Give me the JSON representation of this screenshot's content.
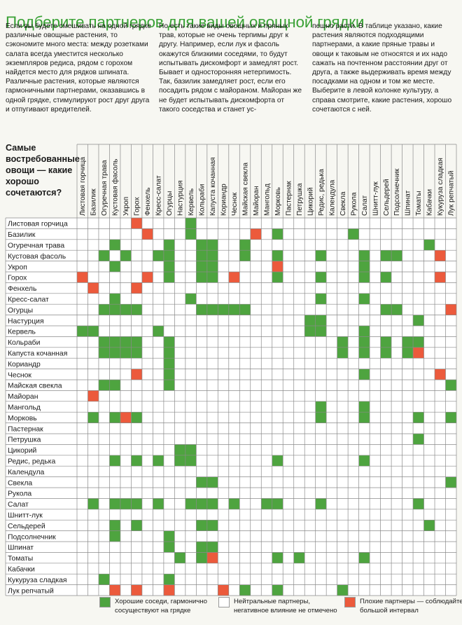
{
  "title": "Подберите партнеров для вашей овощной грядки",
  "intro": {
    "col1": "Если вы будете смешивать на одной грядке различные овощные растения, то сэкономите много места: между розетками салата всегда уместится несколько экземпляров редиса, рядом с горохом найдется место для рядков шпината. Различные растения, которые являются гармоничными партнерами, оказавшись в одной грядке, стимулируют рост друг друга и отпугивают вредителей.",
    "col2": "Но есть такие виды овощных и пряных трав, которые не очень терпимы друг к другу. Например, если лук и фасоль окажутся близкими соседями, то будут испытывать дискомфорт и замедлят рост. Бывает и односторонняя нетерпимость. Так, базилик замедляет рост, если его посадить рядом с майораном. Майоран же не будет испытывать дискомфорта от такого соседства и станет ус-",
    "col3": "пешно расти. В таблице указано, какие растения являются подходящими партнерами, а какие пряные травы и овощи к таковым не относятся и их надо сажать на почтенном расстоянии друг от друга, а также выдерживать время между посадками на одном и том же месте. Выберите в левой колонке культуру, а справа смотрите, какие растения, хорошо сочетаются с ней."
  },
  "table_heading": "Самые востребованные овощи — какие хорошо сочетаются?",
  "crops": [
    "Листовая горчица",
    "Базилик",
    "Огуречная трава",
    "Кустовая фасоль",
    "Укроп",
    "Горох",
    "Фенхель",
    "Кресс-салат",
    "Огурцы",
    "Настурция",
    "Кервель",
    "Кольраби",
    "Капуста кочанная",
    "Кориандр",
    "Чеснок",
    "Майская свекла",
    "Майоран",
    "Мангольд",
    "Морковь",
    "Пастернак",
    "Петрушка",
    "Цикорий",
    "Редис, редька",
    "Календула",
    "Свекла",
    "Рукола",
    "Салат",
    "Шнитт-лук",
    "Сельдерей",
    "Подсолнечник",
    "Шпинат",
    "Томаты",
    "Кабачки",
    "Кукуруза сладкая",
    "Лук репчатый"
  ],
  "colors": {
    "good": "#4ea43f",
    "bad": "#ec5a3c",
    "neutral": "#ffffff",
    "grid_line": "#8a8a8a",
    "title": "#3aa136"
  },
  "legend": [
    {
      "color": "#4ea43f",
      "label": "Хорошие соседи, гармонично сосуществуют на грядке"
    },
    {
      "color": "#ffffff",
      "label": "Нейтральные партнеры, негативное влияние не отмечено"
    },
    {
      "color": "#ec5a3c",
      "label": "Плохие партнеры — соблюдайте большой интервал"
    }
  ],
  "matrix": [
    "-NNNNBNNNNGNNNNNNNNNNNNNNNNNNNNNNNN",
    "N-NNNNBNNNGNNNNNBNGNNNNNNGNNNNNNNNN",
    "NN-GNNNNGNNGGNNGNNNNNNNNNNNNNNNNGNN",
    "NNG-GNNGGNNGGNNGNNGNNNGNNNGNGGNNNBN",
    "NNNG-NNNGNNGGNNNNNBNNNNNNNGNNNNNNNN",
    "BNNNN-BNGNNGGNBNNNGNNNGNNNGNGNNNNBN",
    "NBNNNB-NNNNNNNNNNNNNNNNNNNNNNNNNNNN",
    "NNNGNNN-NNGNNNNNNNNNNNGNNNGNNNNNNNN",
    "NNGGGGNN-NNGGGGGNNNNNNNNNNNNGGNNNNB",
    "NNNNNNNNN-NNNNNNNNNNNGGNNNNNNNNGNNN",
    "GGNNNNNGNN-NNNNNNNNNNGGNNNGNNNNNNNN",
    "NNGGGGNNGNN-NNNNNNNNNNNNGNGNGNGGNNN",
    "NNGGGGNNGNNN-NNNNNNNNNNNGNGNGNGBNNN",
    "NNNNNNNNGNNNN-NNNNNNNNNNNNNNNNNNNNN",
    "NNNNNBNNGNNNNN-NNNNNNNNNNNGNNNNNNBN",
    "NNGGNNNNGNNNNNN-NNNNNNNNNNNNNNNNNNG",
    "NBNNNNNNNNNNNNNN-NNNNNNNNNNNNNNNNNN",
    "NNNNNNNNNNNNNNNNN-NNNNGNNNGNNNNNNNN",
    "NGNGBGNNNNNNNNNNNN-NNNGNNNGNNNNGNNG",
    "NNNNNNNNNNNNNNNNNNN-NNNNNNNNNNNNNNN",
    "NNNNNNNNNNNNNNNNNNNN-NNNNNNNNNNGNNN",
    "NNNNNNNNNGGNNNNNNNNNN-NNNNNNNNNNNNN",
    "NNNGNGNGNGGNNNNNNNGNNN-NNNGNNNNNNNN",
    "NNNNNNNNNNNNNNNNNNNNNNN-NNNNNNNNNNN",
    "NNNNNNNNNNNGGNNNNNNNNNNN-NNNNNNNNNG",
    "NNNNNNNNNNNNNNNNNNNNNNNNN-NNNNNNNNN",
    "NGNGGGNGNNGGGNGNNGGNNNGNNN-NNNNGNNN",
    "NNNNNNNNNNNNNNNNNNNNNNNNNN-NNNNNNNNN",
    "NNNGNGNNNNNGGNNNNNNNNNNNNNN-NNNNGNNN",
    "NNNGNNNNGNNNNNNNNNNNNNNNNNNNN-NNNNN",
    "NNNNNNNNGNNGGNNNNNNNNNNNNNNNNN-NNNN",
    "NNNNNNNNNGNGBNNNNNGNGNNNNNGNNNN-NNN",
    "NNNNNNNNNNNNNNNNNNNNNNNNNNNNNNNN-NN",
    "NNGNNNNNGNNNNNNNNNNNNNNNNNNNNNNNN-N",
    "NNNBNBNNBNNNNBNGNNGNNNNNGNNNNNNNNN-"
  ]
}
